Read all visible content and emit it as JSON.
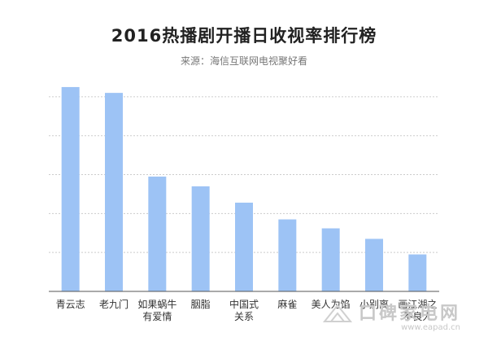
{
  "chart_data": {
    "type": "bar",
    "title": "2016热播剧开播日收视率排行榜",
    "subtitle": "来源：海信互联网电视聚好看",
    "categories": [
      [
        "青云志"
      ],
      [
        "老九门"
      ],
      [
        "如果蜗牛",
        "有爱情"
      ],
      [
        "胭脂"
      ],
      [
        "中国式",
        "关系"
      ],
      [
        "麻雀"
      ],
      [
        "美人为馅"
      ],
      [
        "小别离"
      ],
      [
        "画江湖之",
        "不良人"
      ]
    ],
    "values": [
      5.25,
      5.1,
      2.95,
      2.7,
      2.28,
      1.85,
      1.62,
      1.35,
      0.95
    ],
    "xlabel": "",
    "ylabel": "",
    "ylim": [
      0,
      5.5
    ],
    "grid": true,
    "bar_color": "#9dc3f5",
    "grid_color": "#cccccc"
  },
  "watermark": {
    "text": "口碑家电网",
    "url": "www.eapad.cn"
  }
}
